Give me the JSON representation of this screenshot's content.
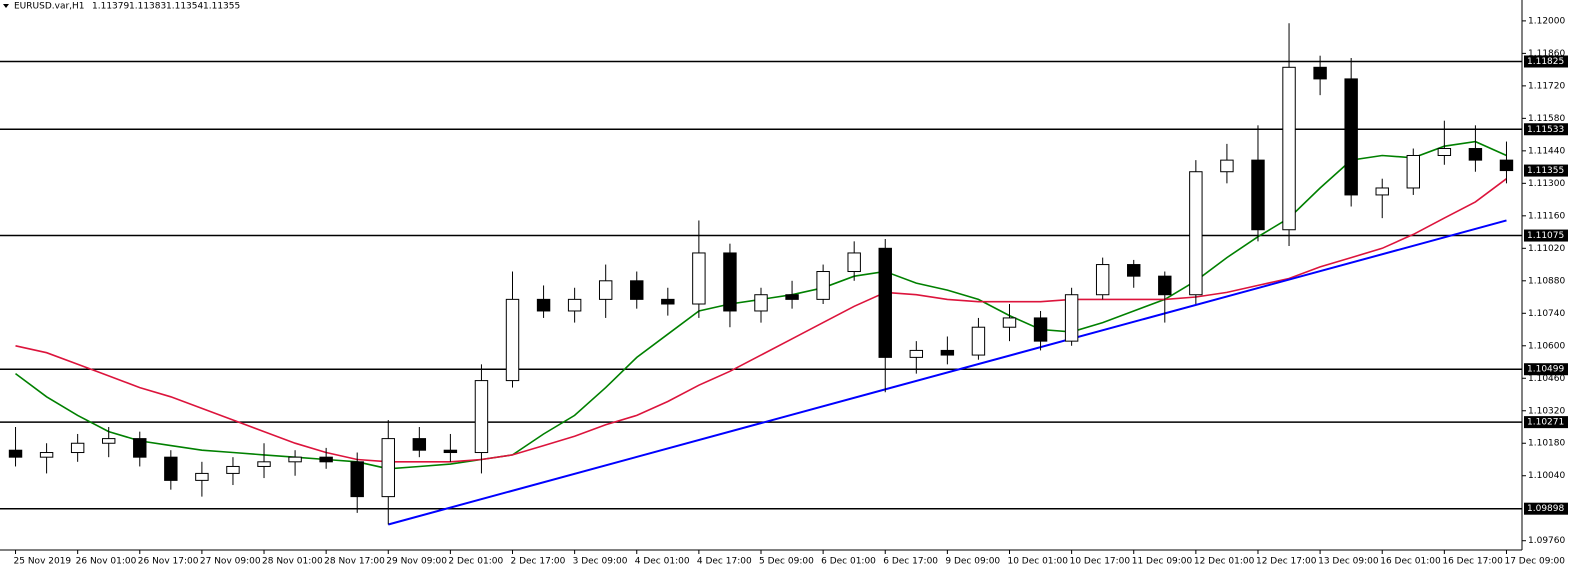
{
  "chart_data": {
    "type": "candlestick",
    "symbol": "EURUSD.var,H1",
    "header_ohlc": [
      1.11379,
      1.11383,
      1.11354,
      1.11355
    ],
    "categories": [
      "25 Nov 2019",
      null,
      "26 Nov 01:00",
      null,
      "26 Nov 17:00",
      null,
      "27 Nov 09:00",
      null,
      "28 Nov 01:00",
      null,
      "28 Nov 17:00",
      null,
      "29 Nov 09:00",
      null,
      "2 Dec 01:00",
      null,
      "2 Dec 17:00",
      null,
      "3 Dec 09:00",
      null,
      "4 Dec 01:00",
      null,
      "4 Dec 17:00",
      null,
      "5 Dec 09:00",
      null,
      "6 Dec 01:00",
      null,
      "6 Dec 17:00",
      null,
      "9 Dec 09:00",
      null,
      "10 Dec 01:00",
      null,
      "10 Dec 17:00",
      null,
      "11 Dec 09:00",
      null,
      "12 Dec 01:00",
      null,
      "12 Dec 17:00",
      null,
      "13 Dec 09:00",
      null,
      "16 Dec 01:00",
      null,
      "16 Dec 17:00",
      null,
      "17 Dec 09:00"
    ],
    "ohlc": [
      [
        1.1015,
        1.1025,
        1.1008,
        1.1012
      ],
      [
        1.1012,
        1.1018,
        1.1005,
        1.1014
      ],
      [
        1.1014,
        1.1022,
        1.101,
        1.1018
      ],
      [
        1.1018,
        1.1025,
        1.1012,
        1.102
      ],
      [
        1.102,
        1.1023,
        1.1008,
        1.1012
      ],
      [
        1.1012,
        1.1015,
        1.0998,
        1.1002
      ],
      [
        1.1002,
        1.101,
        1.0995,
        1.1005
      ],
      [
        1.1005,
        1.1012,
        1.1,
        1.1008
      ],
      [
        1.1008,
        1.1018,
        1.1003,
        1.101
      ],
      [
        1.101,
        1.1015,
        1.1004,
        1.1012
      ],
      [
        1.1012,
        1.1016,
        1.1007,
        1.101
      ],
      [
        1.101,
        1.1014,
        1.0988,
        1.0995
      ],
      [
        1.0995,
        1.1028,
        1.0983,
        1.102
      ],
      [
        1.102,
        1.1025,
        1.1012,
        1.1015
      ],
      [
        1.1015,
        1.1022,
        1.101,
        1.1014
      ],
      [
        1.1014,
        1.1052,
        1.1005,
        1.1045
      ],
      [
        1.1045,
        1.1092,
        1.1042,
        1.108
      ],
      [
        1.108,
        1.1086,
        1.1072,
        1.1075
      ],
      [
        1.1075,
        1.1085,
        1.107,
        1.108
      ],
      [
        1.108,
        1.1095,
        1.1072,
        1.1088
      ],
      [
        1.1088,
        1.1092,
        1.1076,
        1.108
      ],
      [
        1.108,
        1.1085,
        1.1073,
        1.1078
      ],
      [
        1.1078,
        1.1114,
        1.1072,
        1.11
      ],
      [
        1.11,
        1.1104,
        1.1068,
        1.1075
      ],
      [
        1.1075,
        1.1085,
        1.107,
        1.1082
      ],
      [
        1.1082,
        1.1088,
        1.1076,
        1.108
      ],
      [
        1.108,
        1.1095,
        1.1078,
        1.1092
      ],
      [
        1.1092,
        1.1105,
        1.1088,
        1.11
      ],
      [
        1.1102,
        1.1106,
        1.104,
        1.1055
      ],
      [
        1.1055,
        1.1062,
        1.1048,
        1.1058
      ],
      [
        1.1058,
        1.1064,
        1.1052,
        1.1056
      ],
      [
        1.1056,
        1.1072,
        1.1054,
        1.1068
      ],
      [
        1.1068,
        1.1078,
        1.1062,
        1.1072
      ],
      [
        1.1072,
        1.1075,
        1.1058,
        1.1062
      ],
      [
        1.1062,
        1.1085,
        1.106,
        1.1082
      ],
      [
        1.1082,
        1.1098,
        1.108,
        1.1095
      ],
      [
        1.1095,
        1.1097,
        1.1085,
        1.109
      ],
      [
        1.109,
        1.1092,
        1.107,
        1.1082
      ],
      [
        1.1082,
        1.114,
        1.1078,
        1.1135
      ],
      [
        1.1135,
        1.1147,
        1.113,
        1.114
      ],
      [
        1.114,
        1.1155,
        1.1105,
        1.111
      ],
      [
        1.111,
        1.1199,
        1.1103,
        1.118
      ],
      [
        1.118,
        1.1185,
        1.1168,
        1.1175
      ],
      [
        1.1175,
        1.1184,
        1.112,
        1.1125
      ],
      [
        1.1125,
        1.1132,
        1.1115,
        1.1128
      ],
      [
        1.1128,
        1.1145,
        1.1125,
        1.1142
      ],
      [
        1.1142,
        1.1157,
        1.1138,
        1.1145
      ],
      [
        1.1145,
        1.1155,
        1.1135,
        1.114
      ],
      [
        1.114,
        1.1148,
        1.113,
        1.11355
      ]
    ],
    "bull_color": "#ffffff",
    "bear_color": "#000000",
    "series": [
      {
        "color": "#008000",
        "values": [
          1.1048,
          1.1038,
          1.103,
          1.1023,
          1.1019,
          1.1017,
          1.1015,
          1.1014,
          1.1013,
          1.1012,
          1.1011,
          1.101,
          1.1007,
          1.1008,
          1.1009,
          1.1011,
          1.1013,
          1.1022,
          1.103,
          1.1042,
          1.1055,
          1.1065,
          1.1075,
          1.1078,
          1.108,
          1.1082,
          1.1085,
          1.109,
          1.1092,
          1.1087,
          1.1084,
          1.108,
          1.1073,
          1.1067,
          1.1066,
          1.107,
          1.1075,
          1.108,
          1.1088,
          1.1098,
          1.1107,
          1.1115,
          1.1128,
          1.114,
          1.1142,
          1.1141,
          1.1146,
          1.1148,
          1.1142
        ]
      },
      {
        "color": "#dc143c",
        "values": [
          1.106,
          1.1057,
          1.1052,
          1.1047,
          1.1042,
          1.1038,
          1.1033,
          1.1028,
          1.1023,
          1.1018,
          1.1014,
          1.1011,
          1.101,
          1.101,
          1.101,
          1.1011,
          1.1013,
          1.1017,
          1.1021,
          1.1026,
          1.103,
          1.1036,
          1.1043,
          1.1049,
          1.1056,
          1.1063,
          1.107,
          1.1077,
          1.1083,
          1.1082,
          1.108,
          1.1079,
          1.1079,
          1.1079,
          1.108,
          1.108,
          1.108,
          1.108,
          1.1081,
          1.1083,
          1.1086,
          1.1089,
          1.1094,
          1.1098,
          1.1102,
          1.1108,
          1.1115,
          1.1122,
          1.1132
        ]
      }
    ],
    "trendline": {
      "color": "#0000ff",
      "points": [
        {
          "index": 12,
          "value": 1.0983
        },
        {
          "index": 48,
          "value": 1.1114
        }
      ]
    },
    "levels": [
      1.11825,
      1.11533,
      1.11075,
      1.10499,
      1.10271,
      1.09898
    ],
    "last_price": 1.11355,
    "ylim": [
      1.0972,
      1.1209
    ],
    "yticks": [
      {
        "value": 1.12,
        "label": "1.12000"
      },
      {
        "value": 1.1186,
        "label": "1.11860"
      },
      {
        "value": 1.1172,
        "label": "1.11720"
      },
      {
        "value": 1.1158,
        "label": "1.11580"
      },
      {
        "value": 1.1144,
        "label": "1.11440"
      },
      {
        "value": 1.113,
        "label": "1.11300"
      },
      {
        "value": 1.1116,
        "label": "1.11160"
      },
      {
        "value": 1.1102,
        "label": "1.11020"
      },
      {
        "value": 1.1088,
        "label": "1.10880"
      },
      {
        "value": 1.1074,
        "label": "1.10740"
      },
      {
        "value": 1.106,
        "label": "1.10600"
      },
      {
        "value": 1.1046,
        "label": "1.10460"
      },
      {
        "value": 1.1032,
        "label": "1.10320"
      },
      {
        "value": 1.1018,
        "label": "1.10180"
      },
      {
        "value": 1.1004,
        "label": "1.10040"
      },
      {
        "value": 1.0976,
        "label": "1.09760"
      }
    ]
  }
}
